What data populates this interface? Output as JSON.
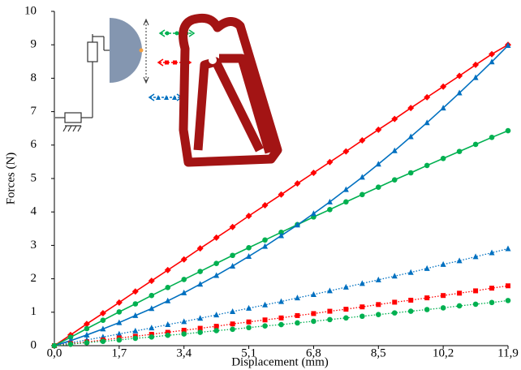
{
  "chart_data": {
    "type": "line",
    "x_label": "Displacement (mm)",
    "y_label": "Forces (N)",
    "x": [
      0,
      0.425,
      0.85,
      1.275,
      1.7,
      2.125,
      2.55,
      2.975,
      3.4,
      3.825,
      4.25,
      4.675,
      5.1,
      5.525,
      5.95,
      6.375,
      6.8,
      7.225,
      7.65,
      8.075,
      8.5,
      8.925,
      9.35,
      9.775,
      10.2,
      10.625,
      11.05,
      11.475,
      11.9
    ],
    "xlim": [
      0,
      11.9
    ],
    "xticks": [
      {
        "value": 0,
        "label": "0,0"
      },
      {
        "value": 1.7,
        "label": "1,7"
      },
      {
        "value": 3.4,
        "label": "3,4"
      },
      {
        "value": 5.1,
        "label": "5,1"
      },
      {
        "value": 6.8,
        "label": "6,8"
      },
      {
        "value": 8.5,
        "label": "8,5"
      },
      {
        "value": 10.2,
        "label": "10,2"
      },
      {
        "value": 11.9,
        "label": "11,9"
      }
    ],
    "ylim": [
      0,
      10
    ],
    "yticks": [
      0,
      1,
      2,
      3,
      4,
      5,
      6,
      7,
      8,
      9,
      10
    ],
    "grid": false,
    "series": [
      {
        "color": "#ff0000",
        "marker": "diamond",
        "dash": "solid",
        "values": [
          0,
          0.32,
          0.65,
          0.97,
          1.29,
          1.62,
          1.94,
          2.26,
          2.58,
          2.91,
          3.23,
          3.55,
          3.88,
          4.2,
          4.52,
          4.85,
          5.17,
          5.49,
          5.81,
          6.14,
          6.46,
          6.78,
          7.11,
          7.43,
          7.75,
          8.07,
          8.4,
          8.72,
          9.0
        ]
      },
      {
        "color": "#00b050",
        "marker": "circle",
        "dash": "solid",
        "values": [
          0,
          0.25,
          0.51,
          0.76,
          1.01,
          1.25,
          1.5,
          1.74,
          1.98,
          2.22,
          2.46,
          2.7,
          2.93,
          3.16,
          3.39,
          3.62,
          3.85,
          4.07,
          4.3,
          4.52,
          4.74,
          4.96,
          5.17,
          5.39,
          5.6,
          5.81,
          6.02,
          6.23,
          6.43
        ]
      },
      {
        "color": "#0070c0",
        "marker": "triangle",
        "dash": "solid",
        "values": [
          0,
          0.15,
          0.32,
          0.5,
          0.69,
          0.9,
          1.11,
          1.34,
          1.58,
          1.84,
          2.1,
          2.38,
          2.67,
          2.97,
          3.29,
          3.61,
          3.95,
          4.3,
          4.67,
          5.04,
          5.43,
          5.83,
          6.25,
          6.67,
          7.11,
          7.56,
          8.02,
          8.49,
          8.98
        ]
      },
      {
        "color": "#0070c0",
        "marker": "triangle",
        "dash": "dotted",
        "values": [
          0,
          0.09,
          0.17,
          0.26,
          0.35,
          0.44,
          0.53,
          0.63,
          0.72,
          0.82,
          0.92,
          1.02,
          1.12,
          1.22,
          1.32,
          1.43,
          1.53,
          1.64,
          1.75,
          1.86,
          1.97,
          2.08,
          2.19,
          2.31,
          2.43,
          2.54,
          2.66,
          2.78,
          2.9
        ]
      },
      {
        "color": "#ff0000",
        "marker": "square",
        "dash": "dotted",
        "values": [
          0,
          0.06,
          0.11,
          0.17,
          0.23,
          0.28,
          0.34,
          0.4,
          0.46,
          0.52,
          0.58,
          0.65,
          0.71,
          0.77,
          0.83,
          0.9,
          0.96,
          1.03,
          1.09,
          1.16,
          1.23,
          1.3,
          1.36,
          1.43,
          1.5,
          1.57,
          1.64,
          1.72,
          1.79
        ]
      },
      {
        "color": "#00b050",
        "marker": "circle",
        "dash": "dotted",
        "values": [
          0,
          0.04,
          0.09,
          0.13,
          0.17,
          0.22,
          0.26,
          0.31,
          0.35,
          0.4,
          0.45,
          0.49,
          0.54,
          0.59,
          0.63,
          0.68,
          0.73,
          0.78,
          0.83,
          0.88,
          0.93,
          0.98,
          1.03,
          1.08,
          1.13,
          1.19,
          1.24,
          1.29,
          1.35
        ]
      }
    ]
  }
}
